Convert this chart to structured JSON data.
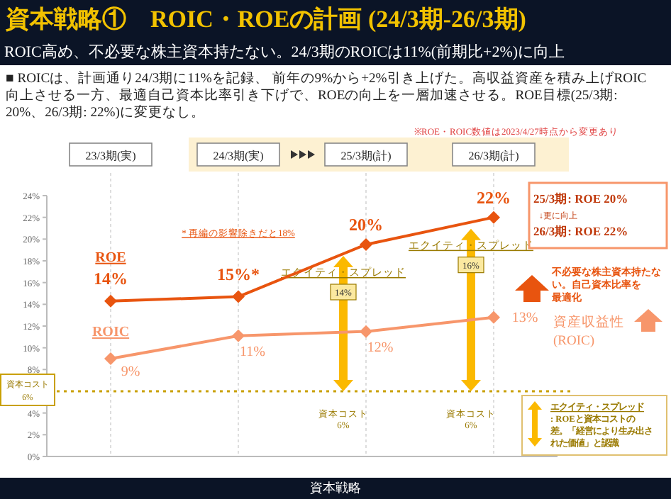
{
  "chart_data": {
    "type": "line",
    "title": "資本戦略①　ROIC・ROEの計画 (24/3期-26/3期)",
    "subtitle": "ROIC高め、不必要な株主資本持たない。24/3期のROICは11%(前期比+2%)に向上",
    "categories": [
      "23/3期(実)",
      "24/3期(実)",
      "25/3期(計)",
      "26/3期(計)"
    ],
    "series": [
      {
        "name": "ROE",
        "color": "#e8540f",
        "values": [
          14.3,
          14.7,
          19.5,
          22.0
        ],
        "value_labels": [
          "14%",
          "15%*",
          "20%",
          "22%"
        ]
      },
      {
        "name": "ROIC",
        "color": "#f7966b",
        "values": [
          9.0,
          11.1,
          11.5,
          12.8
        ],
        "value_labels": [
          "9%",
          "11%",
          "12%",
          "13%"
        ]
      }
    ],
    "ylim": [
      0,
      24
    ],
    "yticks": [
      {
        "value": 0,
        "label": "0%"
      },
      {
        "value": 2,
        "label": "2%"
      },
      {
        "value": 4,
        "label": "4%"
      },
      {
        "value": 6,
        "label": null
      },
      {
        "value": 8,
        "label": "8%"
      },
      {
        "value": 10,
        "label": "10%"
      },
      {
        "value": 12,
        "label": "12%"
      },
      {
        "value": 14,
        "label": "14%"
      },
      {
        "value": 16,
        "label": "16%"
      },
      {
        "value": 18,
        "label": "18%"
      },
      {
        "value": 20,
        "label": "20%"
      },
      {
        "value": 22,
        "label": "22%"
      },
      {
        "value": 24,
        "label": "24%"
      }
    ],
    "grid": "x",
    "marker": "diamond",
    "line_style": "solid",
    "ref_lines": [
      {
        "axis": "y",
        "value": 6,
        "label": "資本コスト 6%",
        "color": "#c9a000",
        "line_style": "dotted"
      }
    ],
    "annotations": [
      "■ ROICは、計画通り24/3期に11%を記録、 前年の9%から+2%引き上げた。高収益資産を積み上げROIC向上させる一方、最適自己資本比率引き下げで、ROEの向上を一層加速させる。ROE目標(25/3期: 20%、26/3期: 22%)に変更なし。",
      "※ROE・ROIC数値は2023/4/27時点から変更あり",
      "* 再編の影響除きだと18%",
      "エクイティ・スプレッド",
      "14%",
      "エクイティ・スプレッド",
      "16%",
      "資本コスト 6%",
      "資本コスト 6%",
      "25/3期: ROE 20%",
      "↓更に向上",
      "26/3期: ROE 22%",
      "不必要な株主資本持たない。自己資本比率を最適化",
      "資産収益性 (ROIC)",
      "エクイティ・スプレッド: ROEと資本コストの差。「経営により生み出された価値」と認識",
      "資本戦略"
    ]
  }
}
